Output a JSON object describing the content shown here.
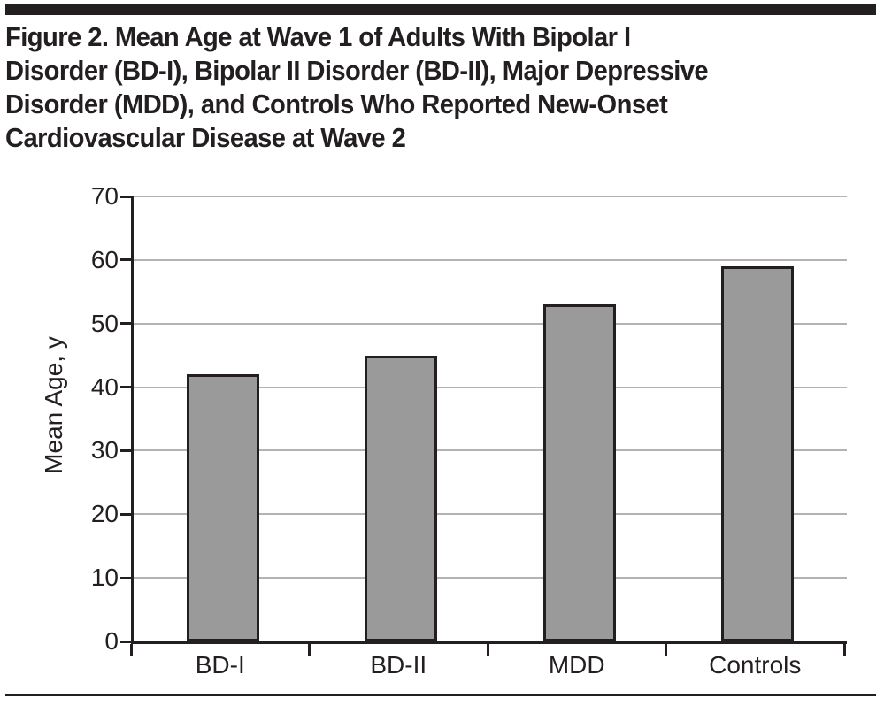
{
  "figure": {
    "title_lines": [
      "Figure 2. Mean Age at Wave 1 of Adults With Bipolar I",
      "Disorder (BD-I), Bipolar II Disorder (BD-II), Major Depressive",
      "Disorder (MDD), and Controls Who Reported New-Onset",
      "Cardiovascular Disease at Wave 2"
    ]
  },
  "chart_data": {
    "type": "bar",
    "title": "Figure 2. Mean Age at Wave 1 of Adults With Bipolar I Disorder (BD-I), Bipolar II Disorder (BD-II), Major Depressive Disorder (MDD), and Controls Who Reported New-Onset Cardiovascular Disease at Wave 2",
    "categories": [
      "BD-I",
      "BD-II",
      "MDD",
      "Controls"
    ],
    "values": [
      42,
      45,
      53,
      59
    ],
    "xlabel": "",
    "ylabel": "Mean Age, y",
    "ylim": [
      0,
      70
    ],
    "yticks": [
      0,
      10,
      20,
      30,
      40,
      50,
      60,
      70
    ],
    "grid": true,
    "legend": false,
    "colors": {
      "bar_fill": "#9a9a9a",
      "bar_border": "#231f20",
      "gridline": "#b3b3b3",
      "axis": "#231f20",
      "text": "#231f20",
      "rule": "#231f20"
    }
  }
}
